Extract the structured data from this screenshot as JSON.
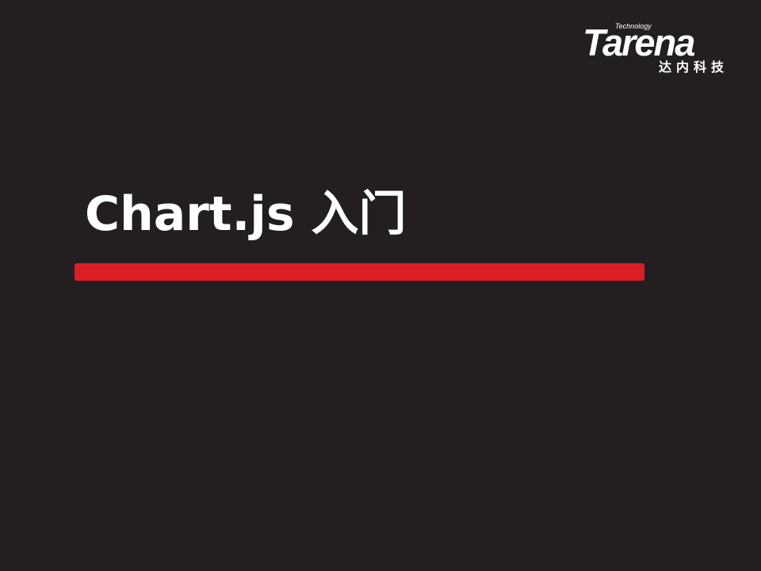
{
  "logo": {
    "technology": "Technology",
    "brand": "Tarena",
    "chinese": "达内科技"
  },
  "slide": {
    "title": "Chart.js 入门"
  },
  "colors": {
    "background": "#231f20",
    "accent_bar": "#dc1f27",
    "text": "#ffffff"
  }
}
